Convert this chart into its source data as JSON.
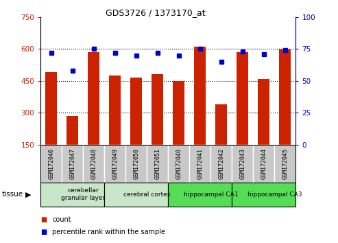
{
  "title": "GDS3726 / 1373170_at",
  "samples": [
    "GSM172046",
    "GSM172047",
    "GSM172048",
    "GSM172049",
    "GSM172050",
    "GSM172051",
    "GSM172040",
    "GSM172041",
    "GSM172042",
    "GSM172043",
    "GSM172044",
    "GSM172045"
  ],
  "counts": [
    490,
    285,
    585,
    475,
    465,
    480,
    448,
    610,
    340,
    585,
    460,
    598
  ],
  "percentiles": [
    72,
    58,
    75,
    72,
    70,
    72,
    70,
    75,
    65,
    73,
    71,
    74
  ],
  "ylim_left": [
    150,
    750
  ],
  "ylim_right": [
    0,
    100
  ],
  "yticks_left": [
    150,
    300,
    450,
    600,
    750
  ],
  "yticks_right": [
    0,
    25,
    50,
    75,
    100
  ],
  "groups": [
    {
      "label": "cerebellar\ngranular layer",
      "start": 0,
      "end": 3,
      "color": "#c8e6c8"
    },
    {
      "label": "cerebral cortex",
      "start": 3,
      "end": 6,
      "color": "#c8e6c8"
    },
    {
      "label": "hippocampal CA1",
      "start": 6,
      "end": 9,
      "color": "#55dd55"
    },
    {
      "label": "hippocampal CA3",
      "start": 9,
      "end": 12,
      "color": "#55dd55"
    }
  ],
  "bar_color": "#cc2200",
  "dot_color": "#0000cc",
  "tick_label_bg": "#c8c8c8",
  "grid_color": "#000000",
  "tissue_label": "tissue",
  "legend_count": "count",
  "legend_percentile": "percentile rank within the sample",
  "left_tick_color": "#cc2200",
  "right_tick_color": "#0000cc",
  "gridlines_at": [
    300,
    450,
    600
  ]
}
